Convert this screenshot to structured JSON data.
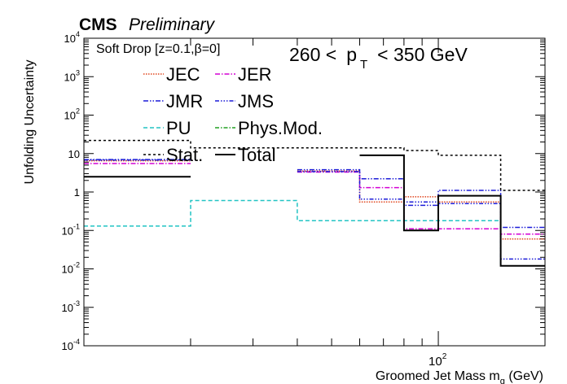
{
  "header": {
    "experiment": "CMS",
    "status": "Preliminary"
  },
  "chart_data": {
    "type": "line",
    "title": "",
    "ylabel": "Unfolding Uncertainty",
    "xlabel_main": "Groomed Jet Mass m",
    "xlabel_sub": "g",
    "xlabel_unit": " (GeV)",
    "xscale": "log",
    "yscale": "log",
    "xlim": [
      10,
      200
    ],
    "ylim": [
      0.0001,
      10000
    ],
    "grid": false,
    "legend_position": "top-left",
    "annotations": {
      "groomer": "Soft Drop [z=0.1,β=0]",
      "pt_low": "260 <",
      "pt_symbol": "p",
      "pt_sub": "T",
      "pt_high": "< 350 GeV"
    },
    "x_tick_label": {
      "base": "10",
      "exp": "2"
    },
    "y_tick_labels": [
      {
        "base": "10",
        "exp": "-4"
      },
      {
        "base": "10",
        "exp": "-3"
      },
      {
        "base": "10",
        "exp": "-2"
      },
      {
        "base": "10",
        "exp": "-1"
      },
      {
        "base": "1",
        "exp": ""
      },
      {
        "base": "10",
        "exp": ""
      },
      {
        "base": "10",
        "exp": "2"
      },
      {
        "base": "10",
        "exp": "3"
      },
      {
        "base": "10",
        "exp": "4"
      }
    ],
    "bin_edges": [
      10,
      20,
      40,
      60,
      80,
      100,
      150,
      200
    ],
    "series": [
      {
        "name": "JEC",
        "color": "#e0461e",
        "dash": "1.5,1.5",
        "values": [
          6.5,
          null,
          3.5,
          0.55,
          0.75,
          0.55,
          0.06
        ]
      },
      {
        "name": "JER",
        "color": "#d400d4",
        "dash": "6,2,1.5,2",
        "values": [
          5.5,
          null,
          3.3,
          1.3,
          0.11,
          0.11,
          0.08
        ]
      },
      {
        "name": "JMR",
        "color": "#1c1cd8",
        "dash": "6,2,1.5,2,1.5,2",
        "values": [
          7,
          null,
          3.8,
          2.2,
          0.45,
          1.1,
          0.12
        ]
      },
      {
        "name": "JMS",
        "color": "#1c1cd8",
        "dash": "5,2,1.5,2,1.5,2,1.5,2",
        "values": [
          6.8,
          null,
          3.4,
          0.65,
          0.55,
          0.5,
          0.018
        ]
      },
      {
        "name": "PU",
        "color": "#22c4c4",
        "dash": "5,3",
        "values": [
          0.13,
          0.6,
          0.18,
          0.18,
          0.18,
          0.18,
          0.012
        ]
      },
      {
        "name": "Phys.Mod.",
        "color": "#22a022",
        "dash": "5,2,1.5,2",
        "values": [
          null,
          null,
          null,
          null,
          0.1,
          null,
          null
        ]
      },
      {
        "name": "Stat.",
        "color": "#000000",
        "dash": "3,3",
        "values": [
          22,
          14,
          14,
          14,
          12,
          9,
          1.1
        ]
      },
      {
        "name": "Total",
        "color": "#000000",
        "dash": "",
        "values": [
          2.5,
          null,
          null,
          9,
          0.1,
          0.8,
          0.012
        ]
      }
    ]
  }
}
